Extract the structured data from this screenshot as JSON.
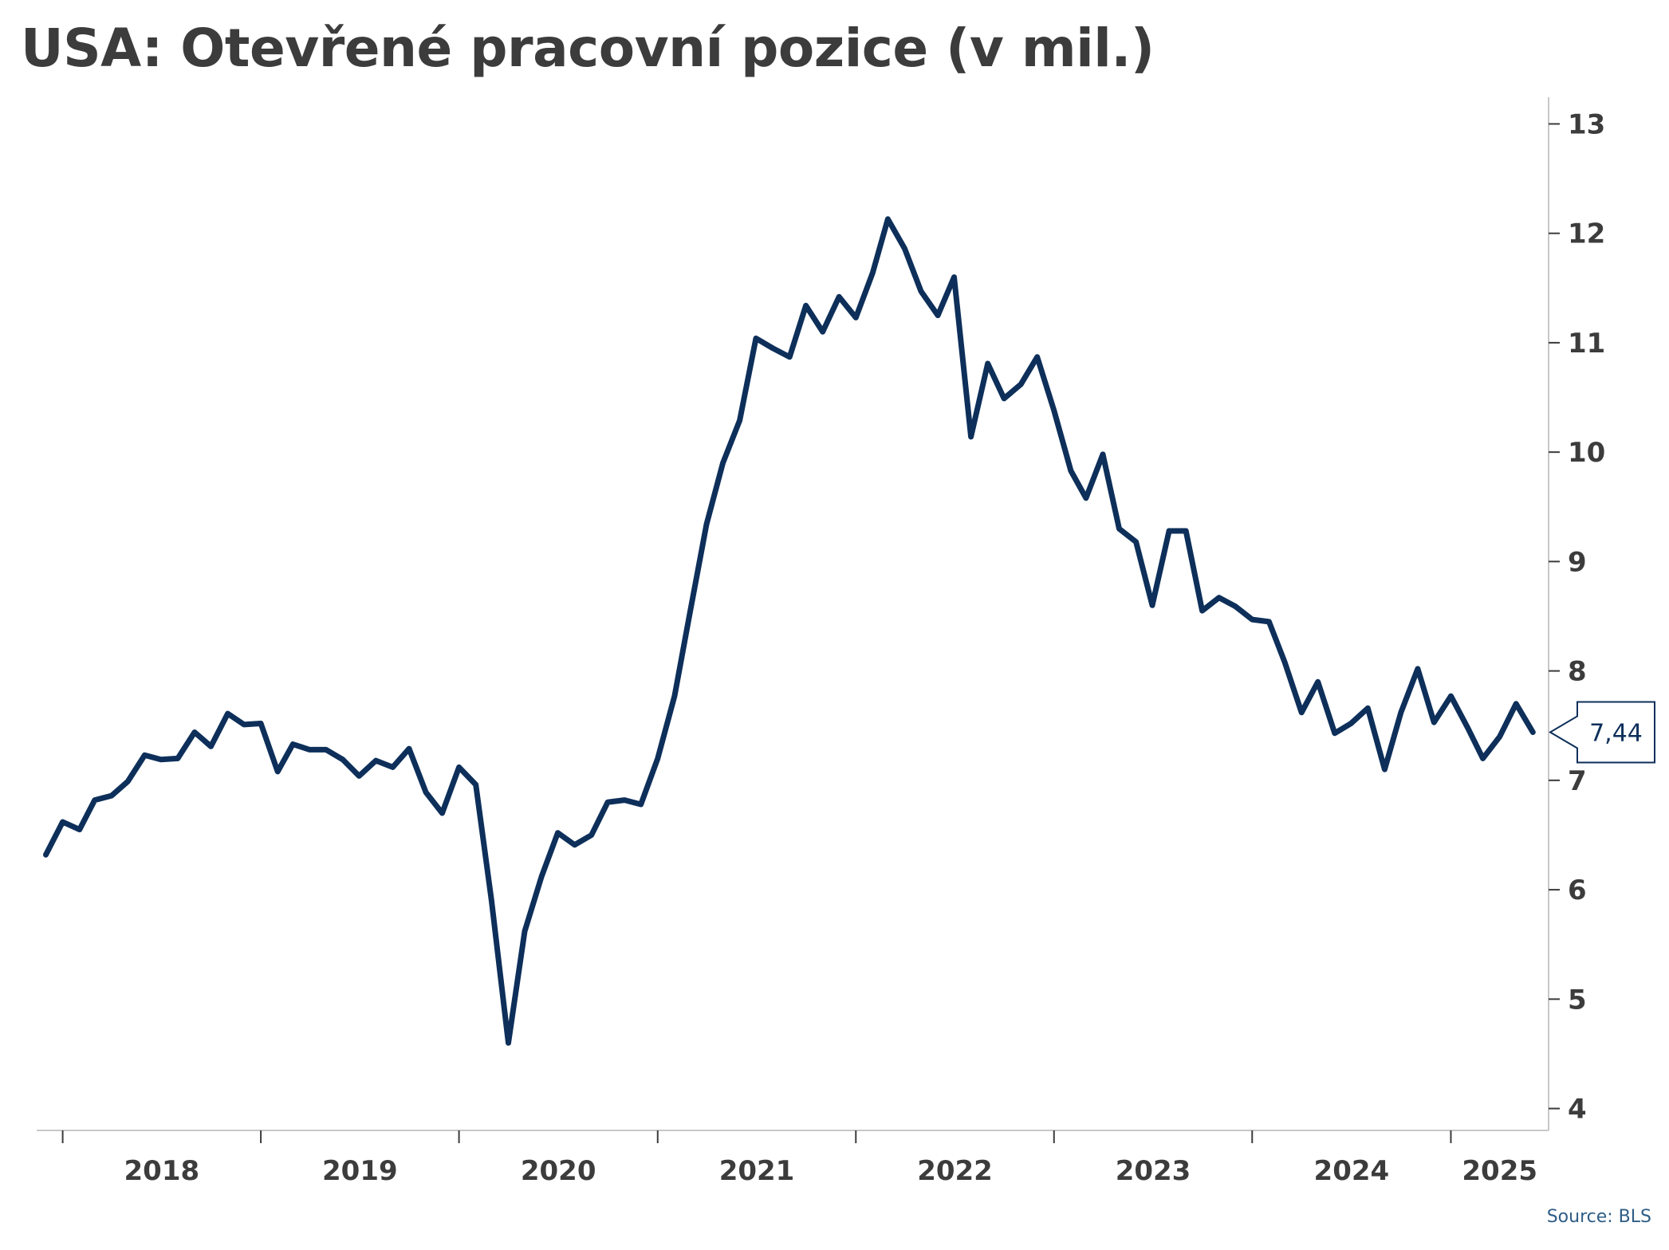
{
  "source": "Source: BLS",
  "colors": {
    "line": "#0d2f5a",
    "axis": "#c8c8c8",
    "text": "#3c3c3c",
    "source": "#2f5d86"
  },
  "chart_data": {
    "type": "line",
    "title": "USA: Otevřené pracovní pozice (v mil.)",
    "xlabel": "",
    "ylabel": "",
    "y_axis_side": "right",
    "ylim": [
      3.8,
      13.2
    ],
    "yticks": [
      4,
      5,
      6,
      7,
      8,
      9,
      10,
      11,
      12,
      13
    ],
    "x_start": "2017-12",
    "xlim": [
      "2017-11-20",
      "2025-06-30"
    ],
    "x_tick_labels": [
      "2018",
      "2019",
      "2020",
      "2021",
      "2022",
      "2023",
      "2024",
      "2025"
    ],
    "grid": false,
    "legend": "none",
    "last_value_label": "7,44",
    "series": [
      {
        "frequency": "monthly",
        "values": [
          6.32,
          6.62,
          6.55,
          6.82,
          6.86,
          6.99,
          7.23,
          7.19,
          7.2,
          7.44,
          7.31,
          7.61,
          7.51,
          7.52,
          7.08,
          7.33,
          7.28,
          7.28,
          7.19,
          7.04,
          7.18,
          7.12,
          7.29,
          6.89,
          6.7,
          7.12,
          6.96,
          5.9,
          4.6,
          5.62,
          6.12,
          6.52,
          6.41,
          6.5,
          6.8,
          6.82,
          6.78,
          7.2,
          7.77,
          8.52,
          9.34,
          9.9,
          10.29,
          11.04,
          10.95,
          10.87,
          11.34,
          11.1,
          11.42,
          11.23,
          11.64,
          12.13,
          11.86,
          11.47,
          11.25,
          11.6,
          10.14,
          10.81,
          10.49,
          10.62,
          10.87,
          10.38,
          9.83,
          9.58,
          9.98,
          9.3,
          9.18,
          8.6,
          9.28,
          9.28,
          8.55,
          8.67,
          8.59,
          8.47,
          8.45,
          8.08,
          7.62,
          7.9,
          7.43,
          7.52,
          7.66,
          7.1,
          7.62,
          8.02,
          7.53,
          7.77,
          7.48,
          7.2,
          7.4,
          7.7,
          7.44
        ]
      }
    ]
  }
}
